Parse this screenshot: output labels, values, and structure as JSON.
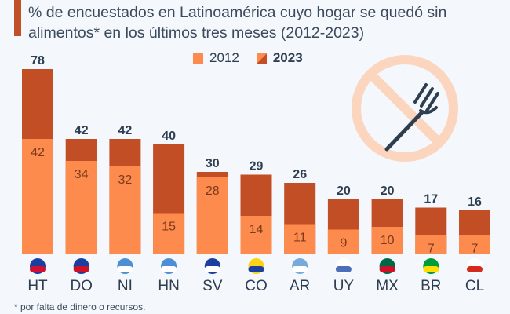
{
  "title": "% de encuestados en Latinoamérica cuyo hogar se quedó sin alimentos* en los últimos tres meses (2012-2023)",
  "footnote": "* por falta de dinero o recursos.",
  "icon": "no-food-fork-icon",
  "colors": {
    "2012": "#fd8b4e",
    "2023": "#c24e25",
    "accent": "#c0502a",
    "icon": "#fcd5bf"
  },
  "chart_data": {
    "type": "bar",
    "stacked_overlay": true,
    "title": "% de encuestados en Latinoamérica cuyo hogar se quedó sin alimentos* en los últimos tres meses (2012-2023)",
    "categories": [
      "HT",
      "DO",
      "NI",
      "HN",
      "SV",
      "CO",
      "AR",
      "UY",
      "MX",
      "BR",
      "CL"
    ],
    "series": [
      {
        "name": "2012",
        "values": [
          42,
          34,
          32,
          15,
          28,
          14,
          11,
          9,
          10,
          7,
          7
        ]
      },
      {
        "name": "2023",
        "values": [
          78,
          42,
          42,
          40,
          30,
          29,
          26,
          20,
          20,
          17,
          16
        ]
      }
    ],
    "legend": "top-center",
    "grid": false
  }
}
